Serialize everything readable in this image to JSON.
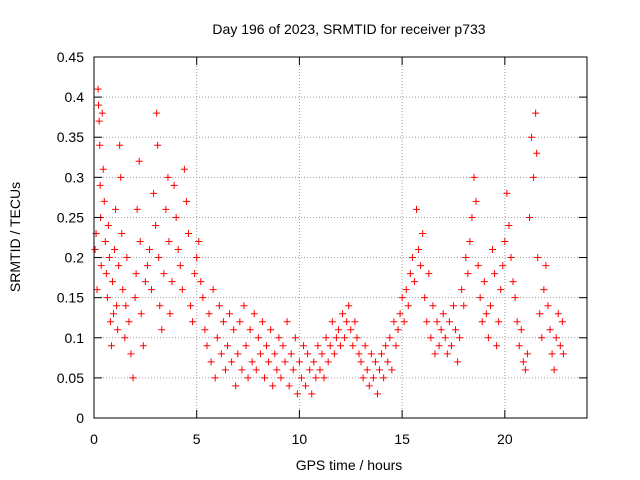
{
  "chart_data": {
    "type": "scatter",
    "title": "Day 196 of 2023, SRMTID for receiver p733",
    "xlabel": "GPS time / hours",
    "ylabel": "SRMTID / TECUs",
    "xlim": [
      0,
      24
    ],
    "ylim": [
      0,
      0.45
    ],
    "grid": true,
    "marker": "+",
    "color": "#ff0000",
    "x_ticks": [
      0,
      5,
      10,
      15,
      20
    ],
    "x_tick_labels": [
      "0",
      "5",
      "10",
      "15",
      "20"
    ],
    "y_ticks": [
      0,
      0.05,
      0.1,
      0.15,
      0.2,
      0.25,
      0.3,
      0.35,
      0.4,
      0.45
    ],
    "y_tick_labels": [
      "0",
      "0.05",
      "0.1",
      "0.15",
      "0.2",
      "0.25",
      "0.3",
      "0.35",
      "0.4",
      "0.45"
    ],
    "series": [
      {
        "name": "SRMTID",
        "points": [
          [
            0.05,
            0.21
          ],
          [
            0.1,
            0.23
          ],
          [
            0.15,
            0.16
          ],
          [
            0.2,
            0.41
          ],
          [
            0.22,
            0.39
          ],
          [
            0.25,
            0.37
          ],
          [
            0.28,
            0.34
          ],
          [
            0.3,
            0.29
          ],
          [
            0.32,
            0.25
          ],
          [
            0.35,
            0.19
          ],
          [
            0.4,
            0.38
          ],
          [
            0.45,
            0.31
          ],
          [
            0.5,
            0.27
          ],
          [
            0.55,
            0.22
          ],
          [
            0.6,
            0.18
          ],
          [
            0.65,
            0.15
          ],
          [
            0.7,
            0.24
          ],
          [
            0.75,
            0.2
          ],
          [
            0.8,
            0.12
          ],
          [
            0.85,
            0.09
          ],
          [
            0.9,
            0.17
          ],
          [
            0.95,
            0.13
          ],
          [
            1.0,
            0.21
          ],
          [
            1.05,
            0.26
          ],
          [
            1.1,
            0.14
          ],
          [
            1.15,
            0.11
          ],
          [
            1.2,
            0.19
          ],
          [
            1.25,
            0.34
          ],
          [
            1.3,
            0.3
          ],
          [
            1.35,
            0.23
          ],
          [
            1.4,
            0.16
          ],
          [
            1.5,
            0.1
          ],
          [
            1.55,
            0.14
          ],
          [
            1.6,
            0.2
          ],
          [
            1.7,
            0.12
          ],
          [
            1.8,
            0.08
          ],
          [
            1.9,
            0.05
          ],
          [
            2.0,
            0.15
          ],
          [
            2.05,
            0.18
          ],
          [
            2.1,
            0.26
          ],
          [
            2.2,
            0.32
          ],
          [
            2.25,
            0.22
          ],
          [
            2.3,
            0.13
          ],
          [
            2.4,
            0.09
          ],
          [
            2.5,
            0.17
          ],
          [
            2.6,
            0.19
          ],
          [
            2.7,
            0.21
          ],
          [
            2.8,
            0.16
          ],
          [
            2.9,
            0.28
          ],
          [
            3.0,
            0.24
          ],
          [
            3.05,
            0.38
          ],
          [
            3.1,
            0.34
          ],
          [
            3.15,
            0.2
          ],
          [
            3.2,
            0.14
          ],
          [
            3.3,
            0.11
          ],
          [
            3.4,
            0.18
          ],
          [
            3.5,
            0.26
          ],
          [
            3.6,
            0.3
          ],
          [
            3.65,
            0.22
          ],
          [
            3.7,
            0.13
          ],
          [
            3.8,
            0.17
          ],
          [
            3.9,
            0.29
          ],
          [
            4.0,
            0.25
          ],
          [
            4.1,
            0.21
          ],
          [
            4.2,
            0.19
          ],
          [
            4.3,
            0.16
          ],
          [
            4.4,
            0.31
          ],
          [
            4.5,
            0.27
          ],
          [
            4.6,
            0.23
          ],
          [
            4.7,
            0.14
          ],
          [
            4.8,
            0.12
          ],
          [
            4.9,
            0.18
          ],
          [
            5.0,
            0.2
          ],
          [
            5.1,
            0.22
          ],
          [
            5.2,
            0.17
          ],
          [
            5.3,
            0.15
          ],
          [
            5.4,
            0.11
          ],
          [
            5.5,
            0.09
          ],
          [
            5.6,
            0.13
          ],
          [
            5.7,
            0.07
          ],
          [
            5.8,
            0.16
          ],
          [
            5.9,
            0.05
          ],
          [
            6.0,
            0.1
          ],
          [
            6.1,
            0.14
          ],
          [
            6.2,
            0.08
          ],
          [
            6.3,
            0.12
          ],
          [
            6.4,
            0.06
          ],
          [
            6.5,
            0.09
          ],
          [
            6.6,
            0.13
          ],
          [
            6.7,
            0.07
          ],
          [
            6.8,
            0.11
          ],
          [
            6.9,
            0.04
          ],
          [
            7.0,
            0.08
          ],
          [
            7.1,
            0.12
          ],
          [
            7.2,
            0.06
          ],
          [
            7.3,
            0.14
          ],
          [
            7.4,
            0.09
          ],
          [
            7.5,
            0.05
          ],
          [
            7.6,
            0.11
          ],
          [
            7.7,
            0.07
          ],
          [
            7.8,
            0.13
          ],
          [
            7.9,
            0.06
          ],
          [
            8.0,
            0.1
          ],
          [
            8.1,
            0.08
          ],
          [
            8.2,
            0.12
          ],
          [
            8.3,
            0.05
          ],
          [
            8.4,
            0.09
          ],
          [
            8.5,
            0.07
          ],
          [
            8.6,
            0.11
          ],
          [
            8.7,
            0.04
          ],
          [
            8.8,
            0.08
          ],
          [
            8.9,
            0.06
          ],
          [
            9.0,
            0.1
          ],
          [
            9.1,
            0.05
          ],
          [
            9.2,
            0.09
          ],
          [
            9.3,
            0.07
          ],
          [
            9.4,
            0.12
          ],
          [
            9.5,
            0.04
          ],
          [
            9.6,
            0.08
          ],
          [
            9.7,
            0.06
          ],
          [
            9.8,
            0.1
          ],
          [
            9.9,
            0.03
          ],
          [
            10.0,
            0.07
          ],
          [
            10.1,
            0.05
          ],
          [
            10.2,
            0.09
          ],
          [
            10.3,
            0.04
          ],
          [
            10.4,
            0.08
          ],
          [
            10.5,
            0.06
          ],
          [
            10.6,
            0.03
          ],
          [
            10.7,
            0.07
          ],
          [
            10.8,
            0.05
          ],
          [
            10.9,
            0.09
          ],
          [
            11.0,
            0.06
          ],
          [
            11.1,
            0.08
          ],
          [
            11.2,
            0.05
          ],
          [
            11.3,
            0.1
          ],
          [
            11.4,
            0.07
          ],
          [
            11.5,
            0.09
          ],
          [
            11.6,
            0.12
          ],
          [
            11.7,
            0.08
          ],
          [
            11.8,
            0.1
          ],
          [
            11.9,
            0.11
          ],
          [
            12.0,
            0.09
          ],
          [
            12.1,
            0.13
          ],
          [
            12.2,
            0.1
          ],
          [
            12.3,
            0.12
          ],
          [
            12.4,
            0.14
          ],
          [
            12.5,
            0.11
          ],
          [
            12.6,
            0.09
          ],
          [
            12.7,
            0.12
          ],
          [
            12.8,
            0.1
          ],
          [
            12.9,
            0.08
          ],
          [
            13.0,
            0.07
          ],
          [
            13.1,
            0.05
          ],
          [
            13.2,
            0.09
          ],
          [
            13.3,
            0.06
          ],
          [
            13.4,
            0.04
          ],
          [
            13.5,
            0.08
          ],
          [
            13.6,
            0.05
          ],
          [
            13.7,
            0.07
          ],
          [
            13.8,
            0.03
          ],
          [
            13.9,
            0.06
          ],
          [
            14.0,
            0.08
          ],
          [
            14.1,
            0.05
          ],
          [
            14.2,
            0.09
          ],
          [
            14.3,
            0.07
          ],
          [
            14.4,
            0.1
          ],
          [
            14.5,
            0.06
          ],
          [
            14.6,
            0.12
          ],
          [
            14.7,
            0.09
          ],
          [
            14.8,
            0.11
          ],
          [
            14.9,
            0.13
          ],
          [
            15.0,
            0.15
          ],
          [
            15.1,
            0.12
          ],
          [
            15.2,
            0.16
          ],
          [
            15.3,
            0.14
          ],
          [
            15.4,
            0.18
          ],
          [
            15.5,
            0.2
          ],
          [
            15.6,
            0.17
          ],
          [
            15.7,
            0.26
          ],
          [
            15.8,
            0.21
          ],
          [
            15.9,
            0.19
          ],
          [
            16.0,
            0.23
          ],
          [
            16.1,
            0.15
          ],
          [
            16.2,
            0.12
          ],
          [
            16.3,
            0.18
          ],
          [
            16.4,
            0.1
          ],
          [
            16.5,
            0.14
          ],
          [
            16.6,
            0.08
          ],
          [
            16.7,
            0.12
          ],
          [
            16.8,
            0.09
          ],
          [
            16.9,
            0.11
          ],
          [
            17.0,
            0.13
          ],
          [
            17.1,
            0.1
          ],
          [
            17.2,
            0.08
          ],
          [
            17.3,
            0.12
          ],
          [
            17.4,
            0.09
          ],
          [
            17.5,
            0.14
          ],
          [
            17.6,
            0.11
          ],
          [
            17.7,
            0.07
          ],
          [
            17.8,
            0.1
          ],
          [
            17.9,
            0.16
          ],
          [
            18.0,
            0.14
          ],
          [
            18.1,
            0.2
          ],
          [
            18.2,
            0.18
          ],
          [
            18.3,
            0.22
          ],
          [
            18.4,
            0.25
          ],
          [
            18.5,
            0.3
          ],
          [
            18.6,
            0.27
          ],
          [
            18.7,
            0.19
          ],
          [
            18.8,
            0.15
          ],
          [
            18.9,
            0.12
          ],
          [
            19.0,
            0.17
          ],
          [
            19.1,
            0.13
          ],
          [
            19.2,
            0.1
          ],
          [
            19.3,
            0.14
          ],
          [
            19.4,
            0.21
          ],
          [
            19.5,
            0.18
          ],
          [
            19.6,
            0.09
          ],
          [
            19.7,
            0.12
          ],
          [
            19.8,
            0.16
          ],
          [
            19.9,
            0.19
          ],
          [
            20.0,
            0.22
          ],
          [
            20.1,
            0.28
          ],
          [
            20.2,
            0.24
          ],
          [
            20.3,
            0.2
          ],
          [
            20.4,
            0.17
          ],
          [
            20.5,
            0.15
          ],
          [
            20.6,
            0.12
          ],
          [
            20.7,
            0.09
          ],
          [
            20.8,
            0.11
          ],
          [
            20.9,
            0.07
          ],
          [
            21.0,
            0.06
          ],
          [
            21.1,
            0.08
          ],
          [
            21.2,
            0.25
          ],
          [
            21.3,
            0.35
          ],
          [
            21.4,
            0.3
          ],
          [
            21.5,
            0.38
          ],
          [
            21.55,
            0.33
          ],
          [
            21.6,
            0.2
          ],
          [
            21.7,
            0.13
          ],
          [
            21.8,
            0.1
          ],
          [
            21.9,
            0.16
          ],
          [
            22.0,
            0.19
          ],
          [
            22.1,
            0.14
          ],
          [
            22.2,
            0.11
          ],
          [
            22.3,
            0.08
          ],
          [
            22.4,
            0.06
          ],
          [
            22.5,
            0.1
          ],
          [
            22.6,
            0.13
          ],
          [
            22.7,
            0.09
          ],
          [
            22.8,
            0.12
          ],
          [
            22.85,
            0.08
          ]
        ]
      }
    ]
  }
}
